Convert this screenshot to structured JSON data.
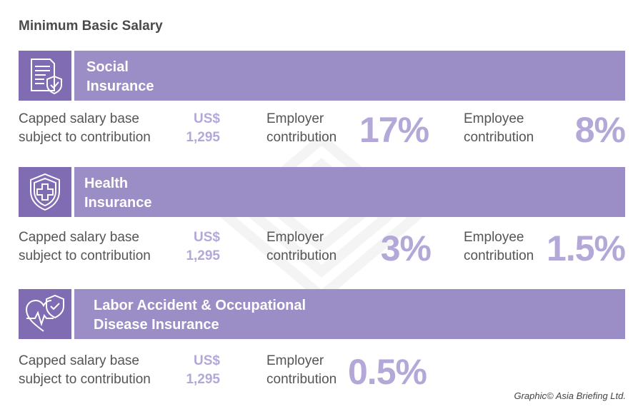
{
  "title": "Minimum Basic Salary",
  "colors": {
    "banner": "#9b8dc6",
    "icon_box": "#7f6cb3",
    "value": "#b3a8d8",
    "text": "#555555"
  },
  "sections": [
    {
      "name_line1": "Social",
      "name_line2": "Insurance",
      "icon": "document-shield-icon",
      "cap_label_1": "Capped salary base",
      "cap_label_2": "subject to contribution",
      "currency": "US$",
      "amount": "1,295",
      "employer_label_1": "Employer",
      "employer_label_2": "contribution",
      "employer_pct": "17%",
      "employee_label_1": "Employee",
      "employee_label_2": "contribution",
      "employee_pct": "8%"
    },
    {
      "name_line1": "Health",
      "name_line2": "Insurance",
      "icon": "medical-shield-icon",
      "cap_label_1": "Capped salary base",
      "cap_label_2": "subject to contribution",
      "currency": "US$",
      "amount": "1,295",
      "employer_label_1": "Employer",
      "employer_label_2": "contribution",
      "employer_pct": "3%",
      "employee_label_1": "Employee",
      "employee_label_2": "contribution",
      "employee_pct": "1.5%"
    },
    {
      "name_line1": "Labor Accident & Occupational",
      "name_line2": "Disease Insurance",
      "icon": "heart-shield-icon",
      "cap_label_1": "Capped salary base",
      "cap_label_2": "subject to contribution",
      "currency": "US$",
      "amount": "1,295",
      "employer_label_1": "Employer",
      "employer_label_2": "contribution",
      "employer_pct": "0.5%"
    }
  ],
  "credit": "Graphic© Asia Briefing Ltd."
}
